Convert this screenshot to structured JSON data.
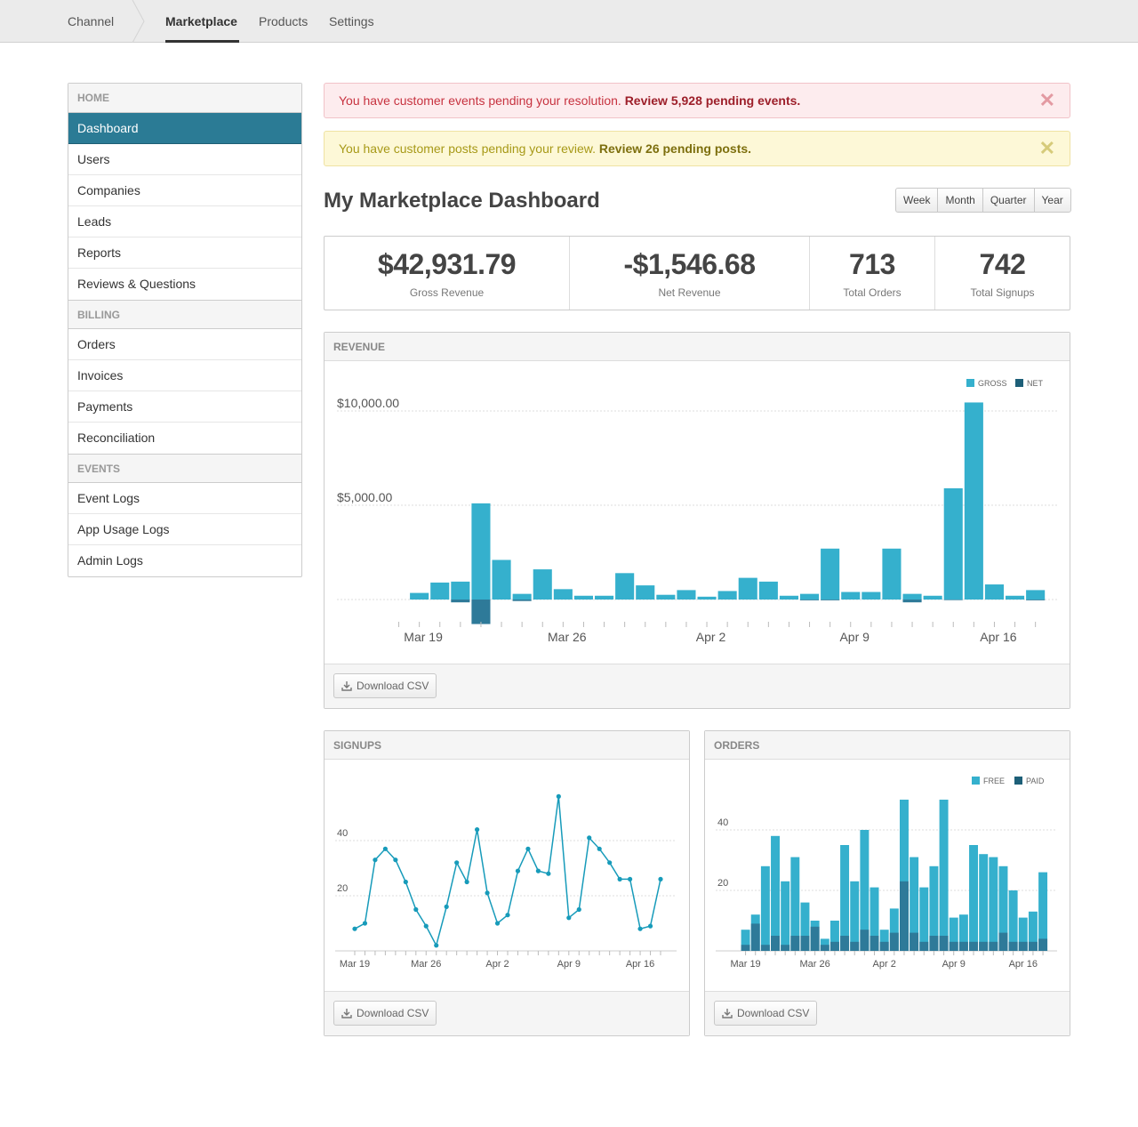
{
  "nav": {
    "items": [
      "Channel",
      "Marketplace",
      "Products",
      "Settings"
    ],
    "active": "Marketplace"
  },
  "sidebar": {
    "sections": [
      {
        "header": "HOME",
        "items": [
          "Dashboard",
          "Users",
          "Companies",
          "Leads",
          "Reports",
          "Reviews & Questions"
        ]
      },
      {
        "header": "BILLING",
        "items": [
          "Orders",
          "Invoices",
          "Payments",
          "Reconciliation"
        ]
      },
      {
        "header": "EVENTS",
        "items": [
          "Event Logs",
          "App Usage Logs",
          "Admin Logs"
        ]
      }
    ],
    "active": "Dashboard"
  },
  "alerts": {
    "events": {
      "text": "You have customer events pending your resolution. ",
      "link": "Review 5,928 pending events.",
      "close": "✕"
    },
    "posts": {
      "text": "You have customer posts pending your review. ",
      "link": "Review 26 pending posts.",
      "close": "✕"
    }
  },
  "page": {
    "title": "My Marketplace Dashboard",
    "periods": [
      "Week",
      "Month",
      "Quarter",
      "Year"
    ]
  },
  "stats": [
    {
      "value": "$42,931.79",
      "label": "Gross Revenue"
    },
    {
      "value": "-$1,546.68",
      "label": "Net Revenue"
    },
    {
      "value": "713",
      "label": "Total Orders"
    },
    {
      "value": "742",
      "label": "Total Signups"
    }
  ],
  "panels": {
    "revenue": {
      "title": "REVENUE",
      "download": "Download CSV"
    },
    "signups": {
      "title": "SIGNUPS",
      "download": "Download CSV"
    },
    "orders": {
      "title": "ORDERS",
      "download": "Download CSV"
    }
  },
  "colors": {
    "accent": "#35b0cd",
    "dark": "#2e7a99",
    "line": "#179bba",
    "active_nav": "#2b7b95"
  },
  "chart_data": [
    {
      "id": "revenue",
      "type": "bar",
      "title": "REVENUE",
      "x_labels": [
        "Mar 19",
        "Mar 26",
        "Apr 2",
        "Apr 9",
        "Apr 16"
      ],
      "x_label_index": [
        1,
        8,
        15,
        22,
        29
      ],
      "yticks": [
        {
          "value": 10000,
          "label": "$10,000.00"
        },
        {
          "value": 5000,
          "label": "$5,000.00"
        }
      ],
      "ylim": [
        -1300,
        10500
      ],
      "legend": [
        {
          "name": "GROSS",
          "color": "#35b0cd"
        },
        {
          "name": "NET",
          "color": "#1d5f78"
        }
      ],
      "series": [
        {
          "name": "GROSS",
          "values": [
            0,
            350,
            900,
            950,
            5100,
            2100,
            300,
            1600,
            550,
            200,
            200,
            1400,
            750,
            250,
            500,
            150,
            450,
            1150,
            950,
            200,
            300,
            2700,
            400,
            400,
            2700,
            300,
            200,
            5900,
            10450,
            800,
            200,
            500
          ]
        },
        {
          "name": "NET",
          "values": [
            0,
            0,
            0,
            -150,
            -1300,
            0,
            -80,
            0,
            0,
            0,
            0,
            0,
            0,
            0,
            0,
            0,
            0,
            0,
            0,
            0,
            -40,
            -40,
            0,
            0,
            0,
            -150,
            0,
            -30,
            0,
            0,
            0,
            -40
          ]
        }
      ]
    },
    {
      "id": "signups",
      "type": "line",
      "title": "SIGNUPS",
      "x_labels": [
        "Mar 19",
        "Mar 26",
        "Apr 2",
        "Apr 9",
        "Apr 16"
      ],
      "x_label_index": [
        1,
        8,
        15,
        22,
        29
      ],
      "yticks": [
        20,
        40
      ],
      "ylim": [
        0,
        48
      ],
      "series": [
        {
          "name": "Signups",
          "values": [
            8,
            10,
            33,
            37,
            33,
            25,
            15,
            9,
            2,
            16,
            32,
            25,
            44,
            21,
            10,
            13,
            29,
            37,
            29,
            28,
            56,
            12,
            15,
            41,
            37,
            32,
            26,
            26,
            8,
            9,
            26
          ]
        }
      ]
    },
    {
      "id": "orders",
      "type": "bar",
      "title": "ORDERS",
      "x_labels": [
        "Mar 19",
        "Mar 26",
        "Apr 2",
        "Apr 9",
        "Apr 16"
      ],
      "x_label_index": [
        1,
        8,
        15,
        22,
        29
      ],
      "yticks": [
        20,
        40
      ],
      "ylim": [
        0,
        48
      ],
      "legend": [
        {
          "name": "FREE",
          "color": "#35b0cd"
        },
        {
          "name": "PAID",
          "color": "#1d5f78"
        }
      ],
      "series": [
        {
          "name": "FREE",
          "values": [
            7,
            12,
            28,
            38,
            23,
            31,
            16,
            10,
            4,
            10,
            35,
            23,
            40,
            21,
            7,
            14,
            50,
            31,
            21,
            28,
            50,
            11,
            12,
            35,
            32,
            31,
            28,
            20,
            11,
            13,
            26
          ]
        },
        {
          "name": "PAID",
          "values": [
            2,
            9,
            2,
            5,
            2,
            5,
            5,
            8,
            2,
            3,
            5,
            3,
            7,
            5,
            3,
            6,
            23,
            6,
            3,
            5,
            5,
            3,
            3,
            3,
            3,
            3,
            6,
            3,
            3,
            3,
            4
          ]
        }
      ]
    }
  ]
}
